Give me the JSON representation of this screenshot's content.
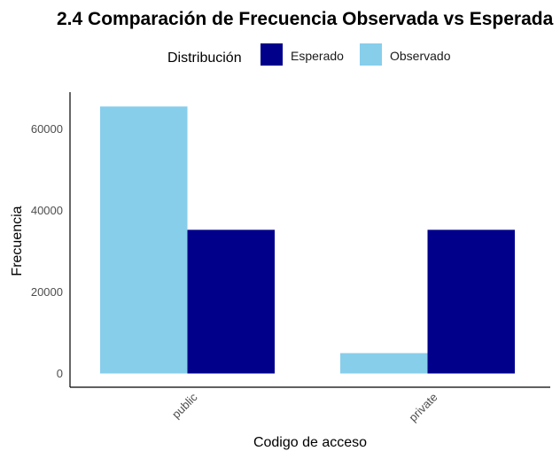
{
  "chart_data": {
    "type": "bar",
    "title": "2.4 Comparación de Frecuencia Observada vs Esperada",
    "xlabel": "Codigo de acceso",
    "ylabel": "Frecuencia",
    "categories": [
      "public",
      "private"
    ],
    "series": [
      {
        "name": "Observado",
        "values": [
          65500,
          5000
        ],
        "color": "#87CEEB"
      },
      {
        "name": "Esperado",
        "values": [
          35250,
          35250
        ],
        "color": "#00008B"
      }
    ],
    "legend": {
      "title": "Distribución",
      "position": "top",
      "order": [
        "Esperado",
        "Observado"
      ]
    },
    "ylim": [
      0,
      69000
    ],
    "yticks": [
      0,
      20000,
      40000,
      60000
    ],
    "grid": false
  }
}
